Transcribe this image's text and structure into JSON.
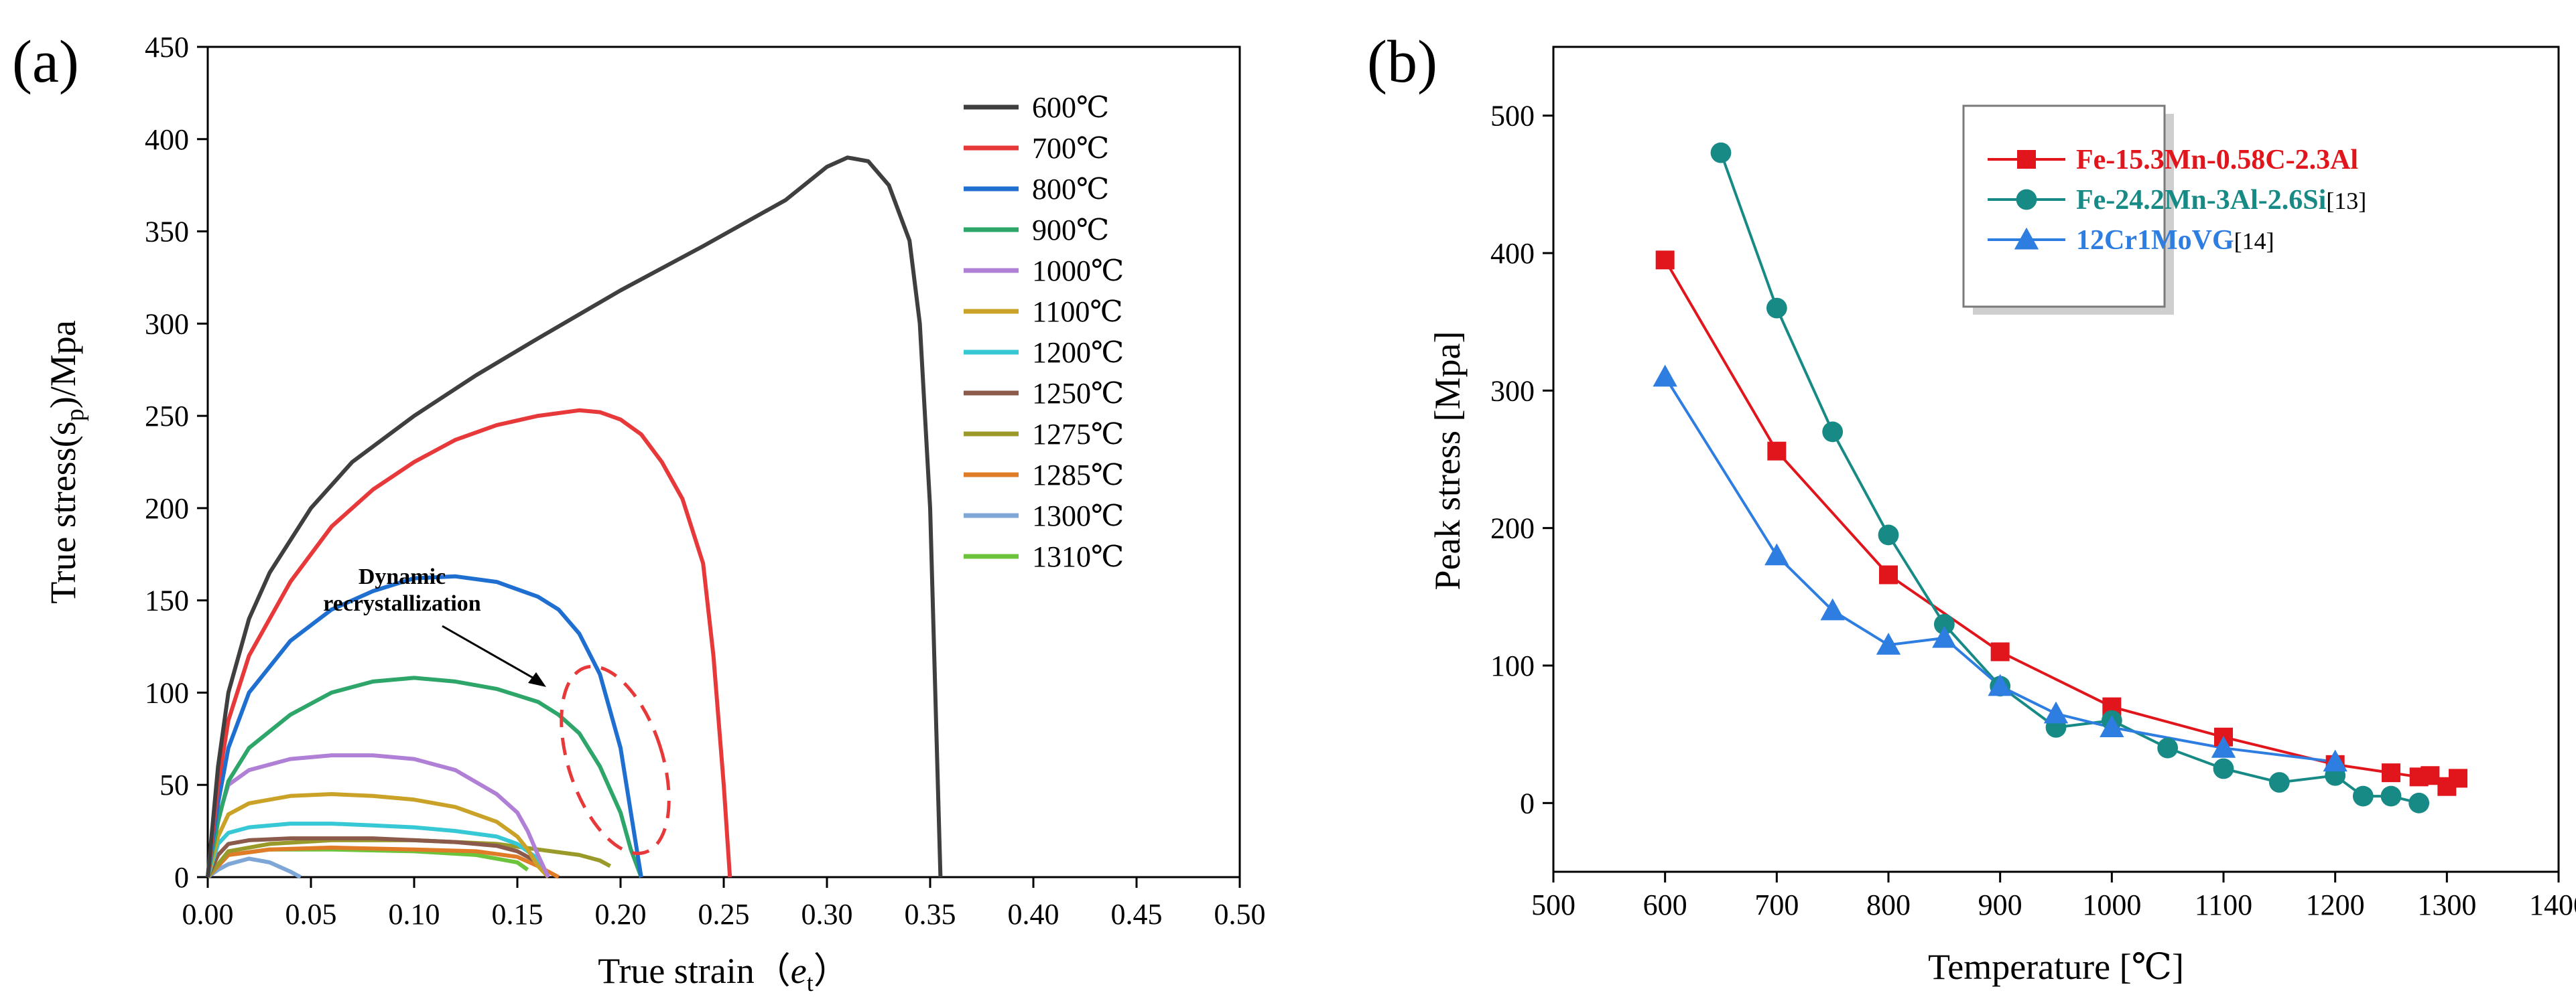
{
  "chart_data": [
    {
      "panel_label": "(a)",
      "type": "line",
      "xlabel": "True strain",
      "xlabel_paren": "（",
      "xlabel_var": "e",
      "xlabel_sub": "t",
      "xlabel_close": "）",
      "ylabel_main": "True stress(s",
      "ylabel_sub": "p",
      "ylabel_tail": ")/Mpa",
      "xlim": [
        0,
        0.5
      ],
      "ylim": [
        0,
        450
      ],
      "xticks": [
        "0.00",
        "0.05",
        "0.10",
        "0.15",
        "0.20",
        "0.25",
        "0.30",
        "0.35",
        "0.40",
        "0.45",
        "0.50"
      ],
      "yticks": [
        "0",
        "50",
        "100",
        "150",
        "200",
        "250",
        "300",
        "350",
        "400",
        "450"
      ],
      "annotation": {
        "line1": "Dynamic",
        "line2": "recrystallization"
      },
      "series": [
        {
          "name": "600℃",
          "color": "#3f3f3f",
          "x": [
            0,
            0.005,
            0.01,
            0.02,
            0.03,
            0.05,
            0.07,
            0.1,
            0.13,
            0.16,
            0.2,
            0.24,
            0.28,
            0.3,
            0.31,
            0.32,
            0.33,
            0.34,
            0.345,
            0.35,
            0.353,
            0.355
          ],
          "y": [
            0,
            60,
            100,
            140,
            165,
            200,
            225,
            250,
            272,
            292,
            318,
            342,
            367,
            385,
            390,
            388,
            375,
            345,
            300,
            200,
            80,
            0
          ]
        },
        {
          "name": "700℃",
          "color": "#e8393a",
          "x": [
            0,
            0.005,
            0.01,
            0.02,
            0.04,
            0.06,
            0.08,
            0.1,
            0.12,
            0.14,
            0.16,
            0.18,
            0.19,
            0.2,
            0.21,
            0.22,
            0.23,
            0.24,
            0.245,
            0.25,
            0.253
          ],
          "y": [
            0,
            50,
            85,
            120,
            160,
            190,
            210,
            225,
            237,
            245,
            250,
            253,
            252,
            248,
            240,
            225,
            205,
            170,
            120,
            50,
            0
          ]
        },
        {
          "name": "800℃",
          "color": "#1f6fd1",
          "x": [
            0,
            0.005,
            0.01,
            0.02,
            0.04,
            0.06,
            0.08,
            0.1,
            0.12,
            0.14,
            0.16,
            0.17,
            0.18,
            0.19,
            0.2,
            0.205,
            0.21
          ],
          "y": [
            0,
            40,
            70,
            100,
            128,
            145,
            155,
            162,
            163,
            160,
            152,
            145,
            132,
            110,
            70,
            35,
            0
          ]
        },
        {
          "name": "900℃",
          "color": "#2ea66a",
          "x": [
            0,
            0.005,
            0.01,
            0.02,
            0.04,
            0.06,
            0.08,
            0.1,
            0.12,
            0.14,
            0.16,
            0.17,
            0.18,
            0.19,
            0.2,
            0.205,
            0.21
          ],
          "y": [
            0,
            30,
            52,
            70,
            88,
            100,
            106,
            108,
            106,
            102,
            95,
            88,
            78,
            60,
            35,
            15,
            0
          ]
        },
        {
          "name": "1000℃",
          "color": "#b07fd6",
          "x": [
            0,
            0.005,
            0.01,
            0.02,
            0.04,
            0.06,
            0.08,
            0.1,
            0.12,
            0.14,
            0.15,
            0.155,
            0.16,
            0.165
          ],
          "y": [
            0,
            32,
            50,
            58,
            64,
            66,
            66,
            64,
            58,
            45,
            35,
            25,
            12,
            0
          ]
        },
        {
          "name": "1100℃",
          "color": "#c9a227",
          "x": [
            0,
            0.005,
            0.01,
            0.02,
            0.04,
            0.06,
            0.08,
            0.1,
            0.12,
            0.14,
            0.15,
            0.155,
            0.16,
            0.165
          ],
          "y": [
            0,
            22,
            34,
            40,
            44,
            45,
            44,
            42,
            38,
            30,
            22,
            15,
            6,
            0
          ]
        },
        {
          "name": "1200℃",
          "color": "#37c8d6",
          "x": [
            0,
            0.005,
            0.01,
            0.02,
            0.04,
            0.06,
            0.08,
            0.1,
            0.12,
            0.14,
            0.15,
            0.16,
            0.165
          ],
          "y": [
            0,
            18,
            24,
            27,
            29,
            29,
            28,
            27,
            25,
            22,
            18,
            10,
            0
          ]
        },
        {
          "name": "1250℃",
          "color": "#8b5a4a",
          "x": [
            0,
            0.005,
            0.01,
            0.02,
            0.04,
            0.06,
            0.08,
            0.1,
            0.12,
            0.14,
            0.15,
            0.16,
            0.165
          ],
          "y": [
            0,
            12,
            18,
            20,
            21,
            21,
            21,
            20,
            19,
            17,
            14,
            8,
            0
          ]
        },
        {
          "name": "1275℃",
          "color": "#9a9a2a",
          "x": [
            0,
            0.01,
            0.03,
            0.06,
            0.1,
            0.14,
            0.16,
            0.18,
            0.19,
            0.195
          ],
          "y": [
            0,
            14,
            18,
            20,
            20,
            18,
            15,
            12,
            9,
            6
          ]
        },
        {
          "name": "1285℃",
          "color": "#e07b28",
          "x": [
            0,
            0.01,
            0.03,
            0.06,
            0.1,
            0.13,
            0.15,
            0.16,
            0.17
          ],
          "y": [
            0,
            12,
            15,
            16,
            15,
            14,
            11,
            6,
            0
          ]
        },
        {
          "name": "1300℃",
          "color": "#7ea6d6",
          "x": [
            0,
            0.005,
            0.01,
            0.02,
            0.03,
            0.04,
            0.045
          ],
          "y": [
            0,
            4,
            7,
            10,
            8,
            3,
            0
          ]
        },
        {
          "name": "1310℃",
          "color": "#6cc43a",
          "x": [
            0,
            0.01,
            0.03,
            0.06,
            0.1,
            0.13,
            0.15,
            0.155
          ],
          "y": [
            0,
            12,
            15,
            15,
            14,
            12,
            8,
            4
          ]
        }
      ]
    },
    {
      "panel_label": "(b)",
      "type": "line",
      "xlabel": "Temperature [℃]",
      "ylabel": "Peak stress [Mpa]",
      "xlim": [
        500,
        1400
      ],
      "ylim": [
        -50,
        550
      ],
      "xticks": [
        "500",
        "600",
        "700",
        "800",
        "900",
        "1000",
        "1100",
        "1200",
        "1300",
        "1400"
      ],
      "yticks": [
        "0",
        "100",
        "200",
        "300",
        "400",
        "500"
      ],
      "series": [
        {
          "name": "Fe-15.3Mn-0.58C-2.3Al",
          "ref": "",
          "color": "#e0161c",
          "marker": "square",
          "x": [
            600,
            700,
            800,
            900,
            1000,
            1100,
            1200,
            1250,
            1275,
            1285,
            1300,
            1310
          ],
          "y": [
            395,
            256,
            166,
            110,
            70,
            48,
            28,
            22,
            19,
            20,
            12,
            18
          ]
        },
        {
          "name": "Fe-24.2Mn-3Al-2.6Si",
          "ref": "[13]",
          "color": "#178a86",
          "marker": "circle",
          "x": [
            650,
            700,
            750,
            800,
            850,
            900,
            950,
            1000,
            1050,
            1100,
            1150,
            1200,
            1225,
            1250,
            1275
          ],
          "y": [
            473,
            360,
            270,
            195,
            130,
            85,
            55,
            60,
            40,
            25,
            15,
            20,
            5,
            5,
            0
          ]
        },
        {
          "name": "12Cr1MoVG",
          "ref": "[14]",
          "color": "#2e7de0",
          "marker": "triangle",
          "x": [
            600,
            700,
            750,
            800,
            850,
            900,
            950,
            1000,
            1100,
            1200
          ],
          "y": [
            310,
            180,
            140,
            115,
            120,
            85,
            65,
            55,
            40,
            30
          ]
        }
      ]
    }
  ]
}
